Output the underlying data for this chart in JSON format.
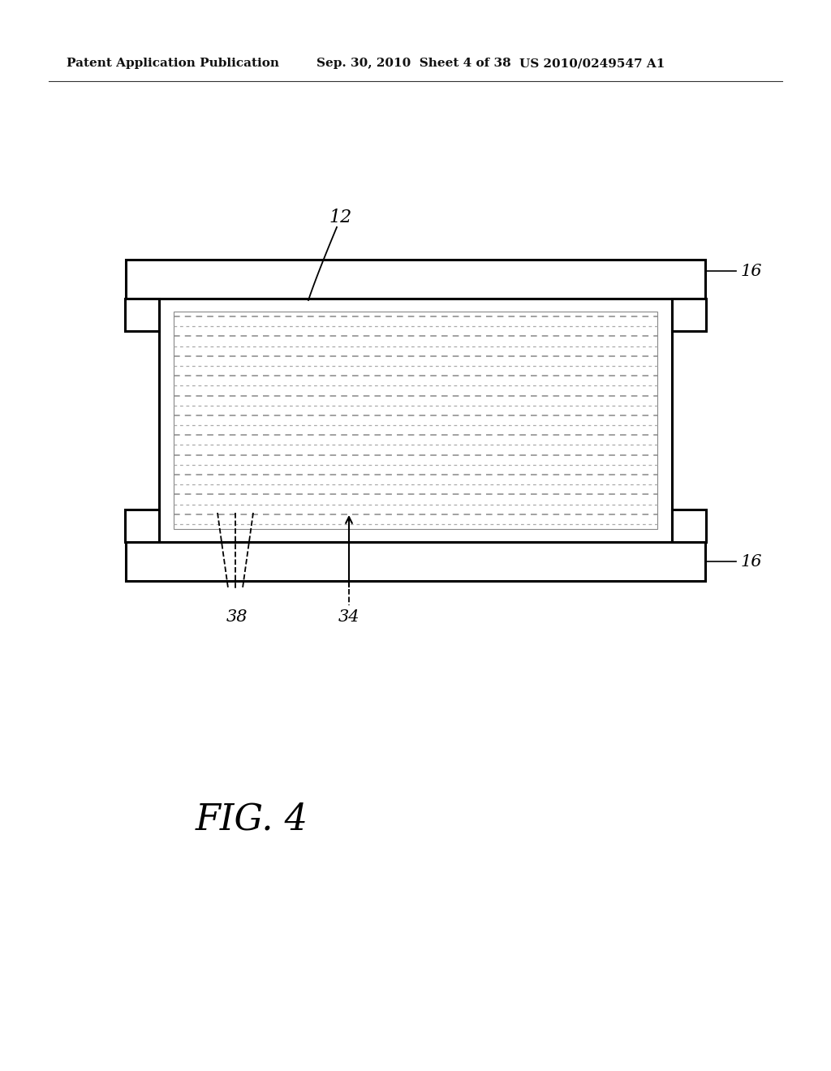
{
  "bg_color": "#ffffff",
  "header_left": "Patent Application Publication",
  "header_mid": "Sep. 30, 2010  Sheet 4 of 38",
  "header_right": "US 2010/0249547 A1",
  "fig_label": "FIG. 4",
  "label_12": "12",
  "label_16_top": "16",
  "label_16_bot": "16",
  "label_38": "38",
  "label_34": "34",
  "lw_thick": 2.2,
  "lw_med": 1.5,
  "lw_thin": 0.8,
  "num_dashed_lines": 22,
  "line_color": "#888888",
  "line_color2": "#aaaaaa"
}
